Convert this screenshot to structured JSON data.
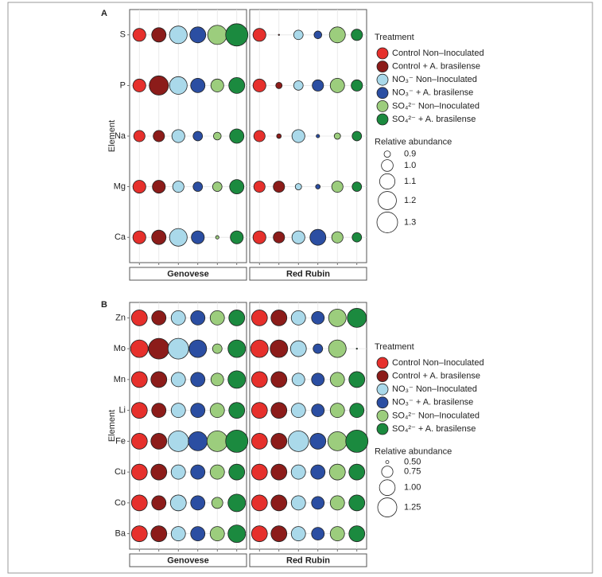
{
  "chart_data": [
    {
      "type": "bubble",
      "label": "A",
      "y_label": "Element",
      "categories": [
        "S",
        "P",
        "Na",
        "Mg",
        "Ca"
      ],
      "facets": [
        "Genovese",
        "Red Rubin"
      ],
      "legend_title": "Treatment",
      "size_title": "Relative abundance",
      "size_ticks": [
        0.9,
        {
          "value": 1,
          "label": "1.0"
        },
        1.1,
        1.2,
        1.3
      ],
      "grid": true,
      "series": [
        {
          "name": "Control Non–Inoculated",
          "color": "#e6302c",
          "values": [
            [
              1.03,
              1.03,
              0.99,
              1.03,
              1.03
            ],
            [
              1.03,
              1.03,
              0.99,
              0.99,
              1.03
            ]
          ]
        },
        {
          "name": "Control + A. brasilense",
          "color": "#8c1c1a",
          "values": [
            [
              1.07,
              1.24,
              0.99,
              1.03,
              1.07
            ],
            [
              0.86,
              0.9,
              0.88,
              0.99,
              0.99
            ]
          ]
        },
        {
          "name": "NO₃⁻ Non–Inoculated",
          "color": "#aad9ea",
          "values": [
            [
              1.18,
              1.18,
              1.03,
              0.99,
              1.18
            ],
            [
              0.95,
              0.95,
              1.03,
              0.9,
              1.03
            ]
          ]
        },
        {
          "name": "NO₃⁻ + A. brasilense",
          "color": "#2b4ea2",
          "values": [
            [
              1.12,
              1.07,
              0.95,
              0.95,
              1.03
            ],
            [
              0.92,
              0.99,
              0.87,
              0.88,
              1.12
            ]
          ]
        },
        {
          "name": "SO₄²⁻ Non–Inoculated",
          "color": "#9ccd7d",
          "values": [
            [
              1.24,
              1.03,
              0.92,
              0.95,
              0.87
            ],
            [
              1.12,
              1.07,
              0.9,
              0.99,
              0.99
            ]
          ]
        },
        {
          "name": "SO₄²⁻ + A. brasilense",
          "color": "#1b8a3f",
          "values": [
            [
              1.37,
              1.12,
              1.07,
              1.07,
              1.03
            ],
            [
              0.99,
              0.99,
              0.95,
              0.95,
              0.95
            ]
          ]
        }
      ]
    },
    {
      "type": "bubble",
      "label": "B",
      "y_label": "Element",
      "categories": [
        "Zn",
        "Mo",
        "Mn",
        "Li",
        "Fe",
        "Cu",
        "Co",
        "Ba"
      ],
      "facets": [
        "Genovese",
        "Red Rubin"
      ],
      "legend_title": "Treatment",
      "size_title": "Relative abundance",
      "size_ticks": [
        {
          "value": 0.5,
          "label": "0.50"
        },
        0.75,
        {
          "value": 1,
          "label": "1.00"
        },
        1.25
      ],
      "grid": true,
      "series": [
        {
          "name": "Control Non–Inoculated",
          "color": "#e6302c",
          "values": [
            [
              1.01,
              1.13,
              1.01,
              1.01,
              1.01,
              1.01,
              1.01,
              1.01
            ],
            [
              1.01,
              1.13,
              1.01,
              1.01,
              1.01,
              1.01,
              1.01,
              1.01
            ]
          ]
        },
        {
          "name": "Control + A. brasilense",
          "color": "#8c1c1a",
          "values": [
            [
              0.91,
              1.38,
              1.01,
              0.91,
              1.01,
              1.01,
              0.91,
              1.01
            ],
            [
              1.01,
              1.13,
              1.01,
              1.01,
              1.01,
              1.01,
              1.01,
              1.01
            ]
          ]
        },
        {
          "name": "NO₃⁻ Non–Inoculated",
          "color": "#aad9ea",
          "values": [
            [
              0.91,
              1.38,
              0.91,
              0.91,
              1.38,
              0.91,
              1.01,
              0.91
            ],
            [
              0.91,
              1.01,
              0.82,
              0.91,
              1.38,
              0.91,
              0.91,
              0.91
            ]
          ]
        },
        {
          "name": "NO₃⁻ + A. brasilense",
          "color": "#2b4ea2",
          "values": [
            [
              0.91,
              1.13,
              0.91,
              0.91,
              1.25,
              0.91,
              0.91,
              0.91
            ],
            [
              0.82,
              0.67,
              0.82,
              0.82,
              1.01,
              0.91,
              0.82,
              0.82
            ]
          ]
        },
        {
          "name": "SO₄²⁻ Non–Inoculated",
          "color": "#9ccd7d",
          "values": [
            [
              0.91,
              0.67,
              0.82,
              0.91,
              1.38,
              0.91,
              0.74,
              0.91
            ],
            [
              1.13,
              1.13,
              0.91,
              0.91,
              1.25,
              1.01,
              0.91,
              0.91
            ]
          ]
        },
        {
          "name": "SO₄²⁻ + A. brasilense",
          "color": "#1b8a3f",
          "values": [
            [
              1.01,
              1.13,
              1.13,
              1.01,
              1.53,
              1.01,
              1.13,
              1.13
            ],
            [
              1.25,
              0.48,
              1.01,
              0.91,
              1.53,
              1.01,
              1.01,
              1.01
            ]
          ]
        }
      ]
    }
  ]
}
